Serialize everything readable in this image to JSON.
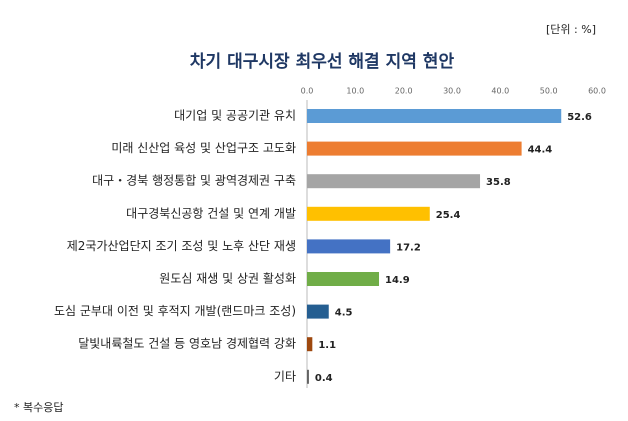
{
  "chart_data": {
    "type": "bar",
    "orientation": "horizontal",
    "title": "차기 대구시장 최우선 해결 지역 현안",
    "unit_note": "[단위 : %]",
    "footnote": "* 복수응답",
    "categories": [
      "대기업 및 공공기관 유치",
      "미래 신산업 육성 및 산업구조 고도화",
      "대구・경북 행정통합 및 광역경제권 구축",
      "대구경북신공항 건설 및 연계 개발",
      "제2국가산업단지 조기 조성 및 노후 산단 재생",
      "원도심 재생 및 상권 활성화",
      "도심 군부대 이전 및 후적지 개발(랜드마크 조성)",
      "달빛내륙철도 건설 등 영호남 경제협력 강화",
      "기타"
    ],
    "values": [
      52.6,
      44.4,
      35.8,
      25.4,
      17.2,
      14.9,
      4.5,
      1.1,
      0.4
    ],
    "colors": [
      "#5b9bd5",
      "#ed7d31",
      "#a5a5a5",
      "#ffc000",
      "#4472c4",
      "#70ad47",
      "#255e91",
      "#9e480e",
      "#636363"
    ],
    "xlim": [
      0,
      60
    ],
    "xticks": [
      {
        "value": 0,
        "label": "0.0"
      },
      {
        "value": 10,
        "label": "10.0"
      },
      {
        "value": 20,
        "label": "20.0"
      },
      {
        "value": 30,
        "label": "30.0"
      },
      {
        "value": 40,
        "label": "40.0"
      },
      {
        "value": 50,
        "label": "50.0"
      },
      {
        "value": 60,
        "label": "60.0"
      }
    ],
    "grid": false
  }
}
